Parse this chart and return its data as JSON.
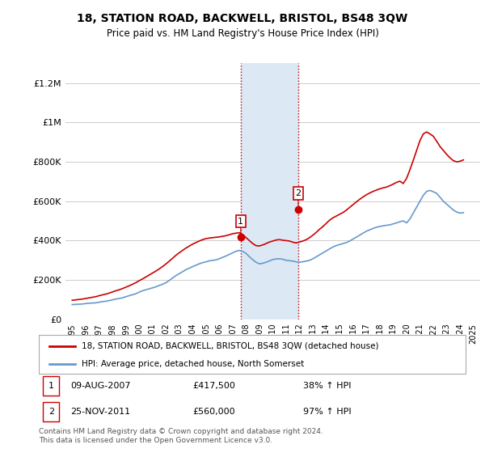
{
  "title": "18, STATION ROAD, BACKWELL, BRISTOL, BS48 3QW",
  "subtitle": "Price paid vs. HM Land Registry's House Price Index (HPI)",
  "property_label": "18, STATION ROAD, BACKWELL, BRISTOL, BS48 3QW (detached house)",
  "hpi_label": "HPI: Average price, detached house, North Somerset",
  "footer": "Contains HM Land Registry data © Crown copyright and database right 2024.\nThis data is licensed under the Open Government Licence v3.0.",
  "transaction1_date": "09-AUG-2007",
  "transaction1_price": "£417,500",
  "transaction1_hpi": "38% ↑ HPI",
  "transaction2_date": "25-NOV-2011",
  "transaction2_price": "£560,000",
  "transaction2_hpi": "97% ↑ HPI",
  "property_color": "#cc0000",
  "hpi_color": "#6699cc",
  "highlight_color": "#dce9f5",
  "highlight_x1": 2007.6,
  "highlight_x2": 2011.9,
  "ylim": [
    0,
    1300000
  ],
  "yticks": [
    0,
    200000,
    400000,
    600000,
    800000,
    1000000,
    1200000
  ],
  "ytick_labels": [
    "£0",
    "£200K",
    "£400K",
    "£600K",
    "£800K",
    "£1M",
    "£1.2M"
  ],
  "xlim_start": 1994.5,
  "xlim_end": 2025.5,
  "marker1_x": 2007.6,
  "marker1_y": 417500,
  "marker2_x": 2011.9,
  "marker2_y": 560000,
  "years": [
    1995.0,
    1995.25,
    1995.5,
    1995.75,
    1996.0,
    1996.25,
    1996.5,
    1996.75,
    1997.0,
    1997.25,
    1997.5,
    1997.75,
    1998.0,
    1998.25,
    1998.5,
    1998.75,
    1999.0,
    1999.25,
    1999.5,
    1999.75,
    2000.0,
    2000.25,
    2000.5,
    2000.75,
    2001.0,
    2001.25,
    2001.5,
    2001.75,
    2002.0,
    2002.25,
    2002.5,
    2002.75,
    2003.0,
    2003.25,
    2003.5,
    2003.75,
    2004.0,
    2004.25,
    2004.5,
    2004.75,
    2005.0,
    2005.25,
    2005.5,
    2005.75,
    2006.0,
    2006.25,
    2006.5,
    2006.75,
    2007.0,
    2007.25,
    2007.5,
    2007.75,
    2008.0,
    2008.25,
    2008.5,
    2008.75,
    2009.0,
    2009.25,
    2009.5,
    2009.75,
    2010.0,
    2010.25,
    2010.5,
    2010.75,
    2011.0,
    2011.25,
    2011.5,
    2011.75,
    2012.0,
    2012.25,
    2012.5,
    2012.75,
    2013.0,
    2013.25,
    2013.5,
    2013.75,
    2014.0,
    2014.25,
    2014.5,
    2014.75,
    2015.0,
    2015.25,
    2015.5,
    2015.75,
    2016.0,
    2016.25,
    2016.5,
    2016.75,
    2017.0,
    2017.25,
    2017.5,
    2017.75,
    2018.0,
    2018.25,
    2018.5,
    2018.75,
    2019.0,
    2019.25,
    2019.5,
    2019.75,
    2020.0,
    2020.25,
    2020.5,
    2020.75,
    2021.0,
    2021.25,
    2021.5,
    2021.75,
    2022.0,
    2022.25,
    2022.5,
    2022.75,
    2023.0,
    2023.25,
    2023.5,
    2023.75,
    2024.0,
    2024.25
  ],
  "hpi_values": [
    75000,
    76000,
    77000,
    78000,
    80000,
    82000,
    83000,
    84000,
    87000,
    90000,
    92000,
    95000,
    99000,
    103000,
    106000,
    109000,
    115000,
    120000,
    125000,
    130000,
    138000,
    145000,
    150000,
    155000,
    160000,
    165000,
    172000,
    178000,
    186000,
    197000,
    210000,
    222000,
    232000,
    242000,
    252000,
    260000,
    268000,
    275000,
    282000,
    288000,
    292000,
    297000,
    300000,
    302000,
    308000,
    315000,
    322000,
    330000,
    338000,
    346000,
    350000,
    345000,
    335000,
    318000,
    303000,
    290000,
    282000,
    285000,
    290000,
    297000,
    304000,
    307000,
    308000,
    305000,
    300000,
    298000,
    296000,
    292000,
    290000,
    293000,
    296000,
    300000,
    308000,
    318000,
    328000,
    338000,
    348000,
    358000,
    368000,
    375000,
    380000,
    385000,
    390000,
    398000,
    408000,
    418000,
    428000,
    438000,
    448000,
    455000,
    462000,
    468000,
    472000,
    475000,
    478000,
    480000,
    485000,
    490000,
    496000,
    500000,
    490000,
    510000,
    540000,
    570000,
    600000,
    630000,
    650000,
    655000,
    648000,
    640000,
    620000,
    600000,
    585000,
    570000,
    555000,
    545000,
    540000,
    542000
  ],
  "property_values": [
    97000,
    99000,
    101000,
    103000,
    106000,
    109000,
    112000,
    115000,
    120000,
    124000,
    128000,
    133000,
    139000,
    145000,
    150000,
    156000,
    163000,
    170000,
    178000,
    186000,
    196000,
    205000,
    215000,
    225000,
    235000,
    245000,
    256000,
    268000,
    281000,
    295000,
    310000,
    325000,
    338000,
    350000,
    362000,
    372000,
    382000,
    390000,
    398000,
    405000,
    410000,
    413000,
    415000,
    417000,
    419000,
    422000,
    425000,
    430000,
    435000,
    438000,
    440000,
    430000,
    415000,
    400000,
    385000,
    374000,
    373000,
    378000,
    385000,
    393000,
    398000,
    403000,
    405000,
    402000,
    400000,
    398000,
    392000,
    388000,
    393000,
    398000,
    405000,
    415000,
    428000,
    442000,
    458000,
    472000,
    488000,
    504000,
    516000,
    525000,
    534000,
    543000,
    555000,
    569000,
    583000,
    597000,
    610000,
    622000,
    633000,
    642000,
    650000,
    657000,
    663000,
    668000,
    672000,
    679000,
    687000,
    696000,
    702000,
    690000,
    716000,
    760000,
    808000,
    858000,
    908000,
    942000,
    952000,
    942000,
    930000,
    905000,
    878000,
    858000,
    838000,
    820000,
    806000,
    800000,
    803000,
    810000
  ]
}
